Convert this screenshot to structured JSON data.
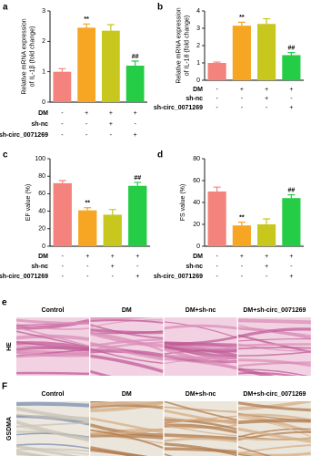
{
  "chart_data": [
    {
      "type": "bar",
      "panel": "a",
      "ylabel": [
        "Relative mRNA expression",
        "of IL-1β (fold change)"
      ],
      "categories": [
        null,
        null,
        null,
        null
      ],
      "values": [
        1.0,
        2.45,
        2.35,
        1.2
      ],
      "errors": [
        0.1,
        0.12,
        0.2,
        0.15
      ],
      "colors": [
        "#f4837d",
        "#f6a623",
        "#c7c71e",
        "#25cc45"
      ],
      "significance": [
        null,
        "**",
        null,
        "##"
      ],
      "ylim": [
        0,
        3
      ],
      "yticks": [
        0,
        1,
        2,
        3
      ],
      "conditions": [
        {
          "name": "DM",
          "signs": [
            "-",
            "+",
            "+",
            "+"
          ]
        },
        {
          "name": "sh-nc",
          "signs": [
            "-",
            "-",
            "+",
            "-"
          ]
        },
        {
          "name": "sh-circ_0071269",
          "signs": [
            "-",
            "-",
            "-",
            "+"
          ]
        }
      ]
    },
    {
      "type": "bar",
      "panel": "b",
      "ylabel": [
        "Relative mRNA expression",
        "of IL-18 (fold change)"
      ],
      "categories": [
        null,
        null,
        null,
        null
      ],
      "values": [
        1.0,
        3.15,
        3.25,
        1.45
      ],
      "errors": [
        0.05,
        0.2,
        0.3,
        0.15
      ],
      "colors": [
        "#f4837d",
        "#f6a623",
        "#c7c71e",
        "#25cc45"
      ],
      "significance": [
        null,
        "**",
        null,
        "##"
      ],
      "ylim": [
        0,
        4
      ],
      "yticks": [
        0,
        1,
        2,
        3,
        4
      ],
      "conditions": [
        {
          "name": "DM",
          "signs": [
            "-",
            "+",
            "+",
            "+"
          ]
        },
        {
          "name": "sh-nc",
          "signs": [
            "-",
            "-",
            "+",
            "-"
          ]
        },
        {
          "name": "sh-circ_0071269",
          "signs": [
            "-",
            "-",
            "-",
            "+"
          ]
        }
      ]
    },
    {
      "type": "bar",
      "panel": "c",
      "ylabel": [
        "EF value (%)"
      ],
      "categories": [
        null,
        null,
        null,
        null
      ],
      "values": [
        72,
        41,
        36,
        69
      ],
      "errors": [
        3,
        3,
        6,
        4
      ],
      "colors": [
        "#f4837d",
        "#f6a623",
        "#c7c71e",
        "#25cc45"
      ],
      "significance": [
        null,
        "**",
        null,
        "##"
      ],
      "ylim": [
        0,
        100
      ],
      "yticks": [
        0,
        20,
        40,
        60,
        80,
        100
      ],
      "conditions": [
        {
          "name": "DM",
          "signs": [
            "-",
            "+",
            "+",
            "+"
          ]
        },
        {
          "name": "sh-nc",
          "signs": [
            "-",
            "-",
            "+",
            "-"
          ]
        },
        {
          "name": "sh-circ_0071269",
          "signs": [
            "-",
            "-",
            "-",
            "+"
          ]
        }
      ]
    },
    {
      "type": "bar",
      "panel": "d",
      "ylabel": [
        "FS value (%)"
      ],
      "categories": [
        null,
        null,
        null,
        null
      ],
      "values": [
        50,
        19,
        20,
        44
      ],
      "errors": [
        4,
        3,
        5,
        3
      ],
      "colors": [
        "#f4837d",
        "#f6a623",
        "#c7c71e",
        "#25cc45"
      ],
      "significance": [
        null,
        "**",
        null,
        "##"
      ],
      "ylim": [
        0,
        80
      ],
      "yticks": [
        0,
        20,
        40,
        60,
        80
      ],
      "conditions": [
        {
          "name": "DM",
          "signs": [
            "-",
            "+",
            "+",
            "+"
          ]
        },
        {
          "name": "sh-nc",
          "signs": [
            "-",
            "-",
            "+",
            "-"
          ]
        },
        {
          "name": "sh-circ_0071269",
          "signs": [
            "-",
            "-",
            "-",
            "+"
          ]
        }
      ]
    }
  ],
  "image_panels": [
    {
      "letter": "e",
      "row_label": "HE",
      "columns": [
        "Control",
        "DM",
        "DM+sh-nc",
        "DM+sh-circ_0071269"
      ]
    },
    {
      "letter": "F",
      "row_label": "GSDMA",
      "columns": [
        "Control",
        "DM",
        "DM+sh-nc",
        "DM+sh-circ_0071269"
      ]
    }
  ]
}
